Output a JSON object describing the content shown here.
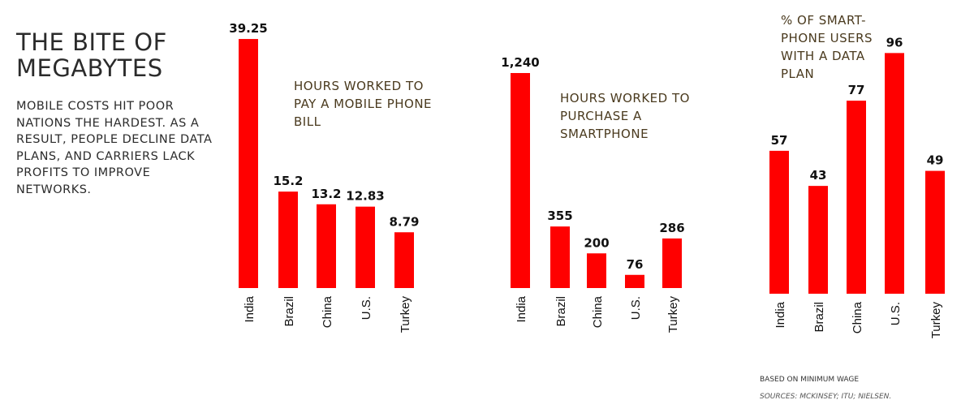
{
  "title": "THE BITE OF MEGABYTES",
  "subtitle": "MOBILE COSTS HIT POOR NATIONS THE HARDEST. AS A RESULT, PEOPLE DECLINE DATA PLANS, AND CARRIERS LACK PROFITS TO IMPROVE NETWORKS.",
  "note": "BASED ON MINIMUM WAGE",
  "sources": "SOURCES: MCKINSEY; ITU; NIELSEN.",
  "bar_color": "#ff0000",
  "chart_data": [
    {
      "type": "bar",
      "title": "HOURS WORKED TO PAY A MOBILE PHONE BILL",
      "categories": [
        "India",
        "Brazil",
        "China",
        "U.S.",
        "Turkey"
      ],
      "values": [
        39.25,
        15.2,
        13.2,
        12.83,
        8.79
      ],
      "labels": [
        "39.25",
        "15.2",
        "13.2",
        "12.83",
        "8.79"
      ]
    },
    {
      "type": "bar",
      "title": "HOURS WORKED TO PURCHASE A SMARTPHONE",
      "categories": [
        "India",
        "Brazil",
        "China",
        "U.S.",
        "Turkey"
      ],
      "values": [
        1240,
        355,
        200,
        76,
        286
      ],
      "labels": [
        "1,240",
        "355",
        "200",
        "76",
        "286"
      ]
    },
    {
      "type": "bar",
      "title": "% OF SMART-PHONE USERS WITH A DATA PLAN",
      "categories": [
        "India",
        "Brazil",
        "China",
        "U.S.",
        "Turkey"
      ],
      "values": [
        57,
        43,
        77,
        96,
        49
      ],
      "labels": [
        "57",
        "43",
        "77",
        "96",
        "49"
      ]
    }
  ]
}
